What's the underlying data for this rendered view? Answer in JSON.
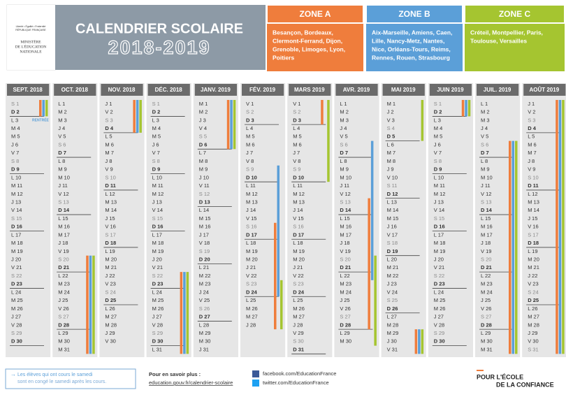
{
  "logo": {
    "motto": "Liberté • Égalité • Fraternité",
    "republic": "RÉPUBLIQUE FRANÇAISE",
    "ministry": [
      "MINISTÈRE",
      "DE L'ÉDUCATION",
      "NATIONALE"
    ]
  },
  "header": {
    "title": "CALENDRIER SCOLAIRE",
    "year": "2018-2019"
  },
  "zones": [
    {
      "name": "ZONE A",
      "color": "#ef7d3c",
      "cities": [
        "Besançon, Bordeaux,",
        "Clermont-Ferrand, Dijon,",
        "Grenoble, Limoges, Lyon,",
        "Poitiers"
      ]
    },
    {
      "name": "ZONE B",
      "color": "#5b9fd8",
      "cities": [
        "Aix-Marseille, Amiens, Caen,",
        "Lille, Nancy-Metz, Nantes,",
        "Nice, Orléans-Tours, Reims,",
        "Rennes, Rouen, Strasbourg"
      ]
    },
    {
      "name": "ZONE C",
      "color": "#a5c530",
      "cities": [
        "Créteil, Montpellier, Paris,",
        "Toulouse, Versailles"
      ]
    }
  ],
  "annotation": "RENTRÉE",
  "months": [
    {
      "label": "SEPT. 2018",
      "days": [
        "S 1",
        "D 2",
        "L 3",
        "M 4",
        "M 5",
        "J 6",
        "V 7",
        "S 8",
        "D 9",
        "L 10",
        "M 11",
        "M 12",
        "J 13",
        "V 14",
        "S 15",
        "D 16",
        "L 17",
        "M 18",
        "M 19",
        "J 20",
        "V 21",
        "S 22",
        "D 23",
        "L 24",
        "M 25",
        "M 26",
        "J 27",
        "V 28",
        "S 29",
        "D 30"
      ],
      "bars": [
        {
          "zone": 0,
          "from": 1,
          "to": 2
        },
        {
          "zone": 1,
          "from": 1,
          "to": 2
        },
        {
          "zone": 2,
          "from": 1,
          "to": 2
        }
      ]
    },
    {
      "label": "OCT. 2018",
      "days": [
        "L 1",
        "M 2",
        "M 3",
        "J 4",
        "V 5",
        "S 6",
        "D 7",
        "L 8",
        "M 9",
        "M 10",
        "J 11",
        "V 12",
        "S 13",
        "D 14",
        "L 15",
        "M 16",
        "M 17",
        "J 18",
        "V 19",
        "S 20",
        "D 21",
        "L 22",
        "M 23",
        "M 24",
        "J 25",
        "V 26",
        "S 27",
        "D 28",
        "L 29",
        "M 30",
        "M 31"
      ],
      "bars": [
        {
          "zone": 0,
          "from": 20,
          "to": 31
        },
        {
          "zone": 1,
          "from": 20,
          "to": 31
        },
        {
          "zone": 2,
          "from": 20,
          "to": 31
        }
      ]
    },
    {
      "label": "NOV. 2018",
      "days": [
        "J 1",
        "V 2",
        "S 3",
        "D 4",
        "L 5",
        "M 6",
        "M 7",
        "J 8",
        "V 9",
        "S 10",
        "D 11",
        "L 12",
        "M 13",
        "M 14",
        "J 15",
        "V 16",
        "S 17",
        "D 18",
        "L 19",
        "M 20",
        "M 21",
        "J 22",
        "V 23",
        "S 24",
        "D 25",
        "L 26",
        "M 27",
        "M 28",
        "J 29",
        "V 30"
      ],
      "bars": [
        {
          "zone": 0,
          "from": 1,
          "to": 4
        },
        {
          "zone": 1,
          "from": 1,
          "to": 4
        },
        {
          "zone": 2,
          "from": 1,
          "to": 4
        }
      ]
    },
    {
      "label": "DÉC. 2018",
      "days": [
        "S 1",
        "D 2",
        "L 3",
        "M 4",
        "M 5",
        "J 6",
        "V 7",
        "S 8",
        "D 9",
        "L 10",
        "M 11",
        "M 12",
        "J 13",
        "V 14",
        "S 15",
        "D 16",
        "L 17",
        "M 18",
        "M 19",
        "J 20",
        "V 21",
        "S 22",
        "D 23",
        "L 24",
        "M 25",
        "M 26",
        "J 27",
        "V 28",
        "S 29",
        "D 30",
        "L 31"
      ],
      "bars": [
        {
          "zone": 0,
          "from": 22,
          "to": 31
        },
        {
          "zone": 1,
          "from": 22,
          "to": 31
        },
        {
          "zone": 2,
          "from": 22,
          "to": 31
        }
      ]
    },
    {
      "label": "JANV. 2019",
      "days": [
        "M 1",
        "M 2",
        "J 3",
        "V 4",
        "S 5",
        "D 6",
        "L 7",
        "M 8",
        "M 9",
        "J 10",
        "V 11",
        "S 12",
        "D 13",
        "L 14",
        "M 15",
        "M 16",
        "J 17",
        "V 18",
        "S 19",
        "D 20",
        "L 21",
        "M 22",
        "M 23",
        "J 24",
        "V 25",
        "S 26",
        "D 27",
        "L 28",
        "M 29",
        "M 30",
        "J 31"
      ],
      "bars": [
        {
          "zone": 0,
          "from": 1,
          "to": 6
        },
        {
          "zone": 1,
          "from": 1,
          "to": 6
        },
        {
          "zone": 2,
          "from": 1,
          "to": 6
        }
      ]
    },
    {
      "label": "FÉV. 2019",
      "days": [
        "V 1",
        "S 2",
        "D 3",
        "L 4",
        "M 5",
        "M 6",
        "J 7",
        "V 8",
        "S 9",
        "D 10",
        "L 11",
        "M 12",
        "M 13",
        "J 14",
        "V 15",
        "S 16",
        "D 17",
        "L 18",
        "M 19",
        "M 20",
        "J 21",
        "V 22",
        "S 23",
        "D 24",
        "L 25",
        "M 26",
        "M 27",
        "J 28"
      ],
      "bars": [
        {
          "zone": 0,
          "from": 16,
          "to": 28
        },
        {
          "zone": 1,
          "from": 9,
          "to": 24
        },
        {
          "zone": 2,
          "from": 23,
          "to": 28
        }
      ]
    },
    {
      "label": "MARS 2019",
      "days": [
        "V 1",
        "S 2",
        "D 3",
        "L 4",
        "M 5",
        "M 6",
        "J 7",
        "V 8",
        "S 9",
        "D 10",
        "L 11",
        "M 12",
        "M 13",
        "J 14",
        "V 15",
        "S 16",
        "D 17",
        "L 18",
        "M 19",
        "M 20",
        "J 21",
        "V 22",
        "S 23",
        "D 24",
        "L 25",
        "M 26",
        "M 27",
        "J 28",
        "V 29",
        "S 30",
        "D 31"
      ],
      "bars": [
        {
          "zone": 0,
          "from": 1,
          "to": 3
        },
        {
          "zone": 2,
          "from": 1,
          "to": 10
        }
      ]
    },
    {
      "label": "AVR. 2019",
      "days": [
        "L 1",
        "M 2",
        "M 3",
        "J 4",
        "V 5",
        "S 6",
        "D 7",
        "L 8",
        "M 9",
        "M 10",
        "J 11",
        "V 12",
        "S 13",
        "D 14",
        "L 15",
        "M 16",
        "M 17",
        "J 18",
        "V 19",
        "S 20",
        "D 21",
        "L 22",
        "M 23",
        "M 24",
        "J 25",
        "V 26",
        "S 27",
        "D 28",
        "L 29",
        "M 30"
      ],
      "bars": [
        {
          "zone": 0,
          "from": 13,
          "to": 28
        },
        {
          "zone": 1,
          "from": 6,
          "to": 22
        },
        {
          "zone": 2,
          "from": 20,
          "to": 30
        }
      ]
    },
    {
      "label": "MAI 2019",
      "days": [
        "M 1",
        "J 2",
        "V 3",
        "S 4",
        "D 5",
        "L 6",
        "M 7",
        "M 8",
        "J 9",
        "V 10",
        "S 11",
        "D 12",
        "L 13",
        "M 14",
        "M 15",
        "J 16",
        "V 17",
        "S 18",
        "D 19",
        "L 20",
        "M 21",
        "M 22",
        "J 23",
        "V 24",
        "S 25",
        "D 26",
        "L 27",
        "M 28",
        "M 29",
        "J 30",
        "V 31"
      ],
      "bars": [
        {
          "zone": 2,
          "from": 1,
          "to": 5
        },
        {
          "zone": 0,
          "from": 29,
          "to": 31
        },
        {
          "zone": 1,
          "from": 29,
          "to": 31
        },
        {
          "zone": 2,
          "from": 29,
          "to": 31
        }
      ]
    },
    {
      "label": "JUIN 2019",
      "days": [
        "S 1",
        "D 2",
        "L 3",
        "M 4",
        "M 5",
        "J 6",
        "V 7",
        "S 8",
        "D 9",
        "L 10",
        "M 11",
        "M 12",
        "J 13",
        "V 14",
        "S 15",
        "D 16",
        "L 17",
        "M 18",
        "M 19",
        "J 20",
        "V 21",
        "S 22",
        "D 23",
        "L 24",
        "M 25",
        "M 26",
        "J 27",
        "V 28",
        "S 29",
        "D 30"
      ],
      "bars": [
        {
          "zone": 0,
          "from": 1,
          "to": 2
        },
        {
          "zone": 1,
          "from": 1,
          "to": 2
        },
        {
          "zone": 2,
          "from": 1,
          "to": 2
        }
      ]
    },
    {
      "label": "JUIL. 2019",
      "days": [
        "L 1",
        "M 2",
        "M 3",
        "J 4",
        "V 5",
        "S 6",
        "D 7",
        "L 8",
        "M 9",
        "M 10",
        "J 11",
        "V 12",
        "S 13",
        "D 14",
        "L 15",
        "M 16",
        "M 17",
        "J 18",
        "V 19",
        "S 20",
        "D 21",
        "L 22",
        "M 23",
        "M 24",
        "J 25",
        "V 26",
        "S 27",
        "D 28",
        "L 29",
        "M 30",
        "M 31"
      ],
      "bars": [
        {
          "zone": 0,
          "from": 6,
          "to": 31
        },
        {
          "zone": 1,
          "from": 6,
          "to": 31
        },
        {
          "zone": 2,
          "from": 6,
          "to": 31
        }
      ]
    },
    {
      "label": "AOÛT 2019",
      "days": [
        "J 1",
        "V 2",
        "S 3",
        "D 4",
        "L 5",
        "M 6",
        "M 7",
        "J 8",
        "V 9",
        "S 10",
        "D 11",
        "L 12",
        "M 13",
        "M 14",
        "J 15",
        "V 16",
        "S 17",
        "D 18",
        "L 19",
        "M 20",
        "M 21",
        "J 22",
        "V 23",
        "S 24",
        "D 25",
        "L 26",
        "M 27",
        "M 28",
        "J 29",
        "V 30",
        "S 31"
      ],
      "bars": [
        {
          "zone": 0,
          "from": 1,
          "to": 31
        },
        {
          "zone": 1,
          "from": 1,
          "to": 31
        },
        {
          "zone": 2,
          "from": 1,
          "to": 31
        }
      ]
    }
  ],
  "footer": {
    "note": [
      "Les élèves qui ont cours le samedi",
      "sont en congé le samedi après les cours."
    ],
    "more": "Pour en savoir plus :",
    "link": "education.gouv.fr/calendrier-scolaire",
    "facebook": "facebook.com/EducationFrance",
    "twitter": "twitter.com/EducationFrance",
    "slogan": [
      "POUR L'ÉCOLE",
      "DE LA CONFIANCE"
    ]
  }
}
